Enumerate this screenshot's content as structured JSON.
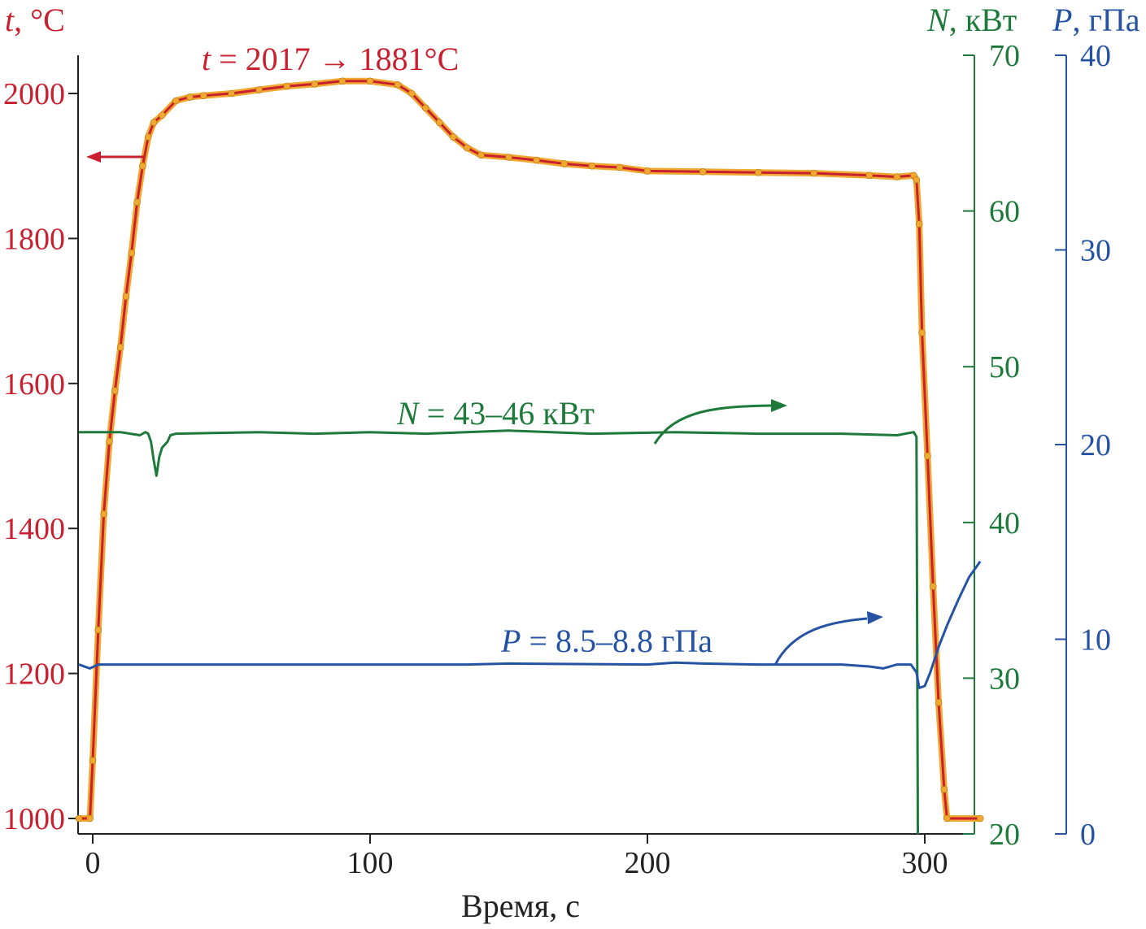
{
  "chart_data": {
    "type": "line",
    "x": {
      "label": "Время, с",
      "range": [
        -5,
        320
      ],
      "ticks": [
        0,
        100,
        200,
        300
      ],
      "tick_labels": [
        "0",
        "100",
        "200",
        "300"
      ]
    },
    "axes": {
      "t": {
        "title_symbol": "t",
        "title_rest": ", °C",
        "color": "#c8202f",
        "range": [
          980,
          2040
        ],
        "ticks": [
          1000,
          1200,
          1400,
          1600,
          1800,
          2000
        ],
        "tick_labels": [
          "1000",
          "1200",
          "1400",
          "1600",
          "1800",
          "2000"
        ]
      },
      "N": {
        "title_symbol": "N",
        "title_rest": ", кВт",
        "color": "#1e7a3a",
        "range": [
          20,
          70
        ],
        "ticks": [
          20,
          30,
          40,
          50,
          60,
          70
        ],
        "tick_labels": [
          "20",
          "30",
          "40",
          "50",
          "60",
          "70"
        ]
      },
      "P": {
        "title_symbol": "P",
        "title_rest": ", гПа",
        "color": "#2552a3",
        "range": [
          0,
          40
        ],
        "ticks": [
          0,
          10,
          20,
          30,
          40
        ],
        "tick_labels": [
          "0",
          "10",
          "20",
          "30",
          "40"
        ]
      }
    },
    "series": [
      {
        "name": "t",
        "axis": "t",
        "color": "#c8202f",
        "marker_color": "#f0a830",
        "points": [
          [
            -5,
            1000
          ],
          [
            -1,
            1000
          ],
          [
            0,
            1080
          ],
          [
            2,
            1260
          ],
          [
            4,
            1420
          ],
          [
            6,
            1520
          ],
          [
            8,
            1590
          ],
          [
            10,
            1650
          ],
          [
            12,
            1720
          ],
          [
            14,
            1780
          ],
          [
            16,
            1850
          ],
          [
            18,
            1900
          ],
          [
            20,
            1940
          ],
          [
            22,
            1960
          ],
          [
            25,
            1970
          ],
          [
            30,
            1990
          ],
          [
            35,
            1995
          ],
          [
            40,
            1997
          ],
          [
            50,
            2000
          ],
          [
            60,
            2005
          ],
          [
            70,
            2010
          ],
          [
            80,
            2013
          ],
          [
            90,
            2017
          ],
          [
            100,
            2017
          ],
          [
            110,
            2012
          ],
          [
            115,
            2000
          ],
          [
            120,
            1980
          ],
          [
            125,
            1960
          ],
          [
            130,
            1940
          ],
          [
            135,
            1925
          ],
          [
            140,
            1915
          ],
          [
            150,
            1912
          ],
          [
            160,
            1908
          ],
          [
            170,
            1903
          ],
          [
            180,
            1900
          ],
          [
            190,
            1898
          ],
          [
            200,
            1893
          ],
          [
            220,
            1892
          ],
          [
            240,
            1891
          ],
          [
            260,
            1890
          ],
          [
            280,
            1887
          ],
          [
            290,
            1885
          ],
          [
            296,
            1887
          ],
          [
            297,
            1881
          ],
          [
            298,
            1820
          ],
          [
            299,
            1670
          ],
          [
            301,
            1500
          ],
          [
            303,
            1320
          ],
          [
            305,
            1160
          ],
          [
            307,
            1040
          ],
          [
            308,
            1000
          ],
          [
            320,
            1000
          ]
        ]
      },
      {
        "name": "N",
        "axis": "N",
        "color": "#1e7a3a",
        "points": [
          [
            -5,
            45.8
          ],
          [
            10,
            45.8
          ],
          [
            17,
            45.6
          ],
          [
            19,
            45.8
          ],
          [
            20,
            45.7
          ],
          [
            21,
            45.2
          ],
          [
            22,
            44.0
          ],
          [
            23,
            43.0
          ],
          [
            24,
            44.2
          ],
          [
            25,
            44.8
          ],
          [
            27,
            45.2
          ],
          [
            28,
            45.6
          ],
          [
            30,
            45.7
          ],
          [
            60,
            45.8
          ],
          [
            80,
            45.7
          ],
          [
            100,
            45.8
          ],
          [
            120,
            45.7
          ],
          [
            150,
            45.9
          ],
          [
            180,
            45.7
          ],
          [
            210,
            45.8
          ],
          [
            240,
            45.7
          ],
          [
            270,
            45.7
          ],
          [
            290,
            45.6
          ],
          [
            296,
            45.8
          ],
          [
            297,
            45.5
          ],
          [
            297.5,
            20
          ]
        ]
      },
      {
        "name": "P",
        "axis": "P",
        "color": "#2552a3",
        "points": [
          [
            -5,
            8.7
          ],
          [
            -1,
            8.5
          ],
          [
            2,
            8.7
          ],
          [
            50,
            8.7
          ],
          [
            100,
            8.7
          ],
          [
            135,
            8.7
          ],
          [
            150,
            8.75
          ],
          [
            200,
            8.7
          ],
          [
            210,
            8.8
          ],
          [
            220,
            8.75
          ],
          [
            240,
            8.7
          ],
          [
            270,
            8.7
          ],
          [
            280,
            8.6
          ],
          [
            285,
            8.5
          ],
          [
            290,
            8.7
          ],
          [
            295,
            8.7
          ],
          [
            297,
            8.3
          ],
          [
            298,
            7.5
          ],
          [
            300,
            7.6
          ],
          [
            302,
            8.3
          ],
          [
            305,
            9.6
          ],
          [
            308,
            10.7
          ],
          [
            312,
            12.0
          ],
          [
            316,
            13.2
          ],
          [
            320,
            14.0
          ]
        ]
      }
    ],
    "annotations": {
      "t": {
        "symbol": "t",
        "rest": " = 2017 → 1881°C"
      },
      "N": {
        "symbol": "N",
        "rest": " = 43–46 кВт"
      },
      "P": {
        "symbol": "P",
        "rest": " = 8.5–8.8 гПа"
      }
    }
  }
}
